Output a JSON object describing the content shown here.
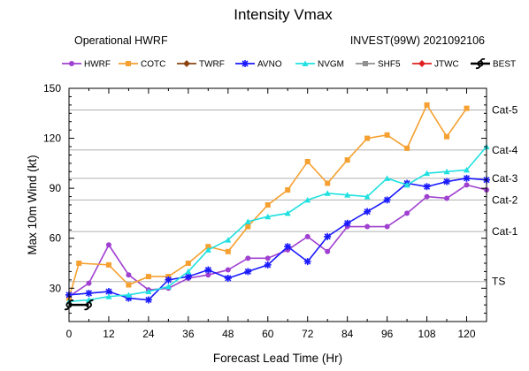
{
  "chart_data": {
    "type": "line",
    "title": "Intensity Vmax",
    "subtitle_left": "Operational HWRF",
    "subtitle_right": "INVEST(99W) 2021092106",
    "xlabel": "Forecast Lead Time (Hr)",
    "ylabel": "Max 10m Wind (kt)",
    "xlim": [
      0,
      126
    ],
    "ylim": [
      10,
      150
    ],
    "xticks": [
      0,
      12,
      24,
      36,
      48,
      60,
      72,
      84,
      96,
      108,
      120
    ],
    "yticks": [
      30,
      60,
      90,
      120,
      150
    ],
    "legend_position": "top",
    "category_lines": [
      {
        "label": "TS",
        "value": 34
      },
      {
        "label": "Cat-1",
        "value": 64
      },
      {
        "label": "Cat-2",
        "value": 83
      },
      {
        "label": "Cat-3",
        "value": 96
      },
      {
        "label": "Cat-4",
        "value": 113
      },
      {
        "label": "Cat-5",
        "value": 137
      }
    ],
    "series": [
      {
        "name": "HWRF",
        "color": "#a040d0",
        "marker": "circle",
        "x": [
          0,
          6,
          12,
          18,
          24,
          30,
          36,
          42,
          48,
          54,
          60,
          66,
          72,
          78,
          84,
          90,
          96,
          102,
          108,
          114,
          120,
          126
        ],
        "y": [
          25,
          33,
          56,
          38,
          29,
          30,
          36,
          38,
          41,
          48,
          48,
          53,
          61,
          52,
          67,
          67,
          67,
          75,
          85,
          84,
          92,
          89
        ]
      },
      {
        "name": "COTC",
        "color": "#f5a030",
        "marker": "square",
        "x": [
          0,
          3,
          12,
          18,
          24,
          30,
          36,
          42,
          48,
          54,
          60,
          66,
          72,
          78,
          84,
          90,
          96,
          102,
          108,
          114,
          120
        ],
        "y": [
          24,
          45,
          44,
          32,
          37,
          37,
          45,
          55,
          52,
          67,
          80,
          89,
          106,
          93,
          107,
          120,
          122,
          114,
          140,
          121,
          138
        ]
      },
      {
        "name": "TWRF",
        "color": "#8b4513",
        "marker": "diamond",
        "x": [],
        "y": []
      },
      {
        "name": "AVNO",
        "color": "#1a1aff",
        "marker": "star",
        "x": [
          0,
          6,
          12,
          18,
          24,
          30,
          36,
          42,
          48,
          54,
          60,
          66,
          72,
          78,
          84,
          90,
          96,
          102,
          108,
          114,
          120,
          126
        ],
        "y": [
          26,
          27,
          28,
          24,
          23,
          35,
          37,
          41,
          36,
          40,
          44,
          55,
          46,
          61,
          69,
          76,
          83,
          93,
          91,
          94,
          96,
          95
        ]
      },
      {
        "name": "NVGM",
        "color": "#20e0e0",
        "marker": "triangle",
        "x": [
          0,
          6,
          12,
          18,
          24,
          30,
          36,
          42,
          48,
          54,
          60,
          66,
          72,
          78,
          84,
          90,
          96,
          102,
          108,
          114,
          120,
          126
        ],
        "y": [
          22,
          23,
          25,
          26,
          28,
          31,
          40,
          53,
          59,
          70,
          73,
          75,
          83,
          87,
          86,
          85,
          96,
          92,
          99,
          100,
          101,
          115
        ]
      },
      {
        "name": "SHF5",
        "color": "#909090",
        "marker": "square",
        "x": [],
        "y": []
      },
      {
        "name": "JTWC",
        "color": "#e02020",
        "marker": "diamond",
        "x": [],
        "y": []
      },
      {
        "name": "BEST",
        "color": "#000000",
        "marker": "hurricane",
        "x": [
          0,
          6
        ],
        "y": [
          20,
          20
        ]
      }
    ]
  }
}
